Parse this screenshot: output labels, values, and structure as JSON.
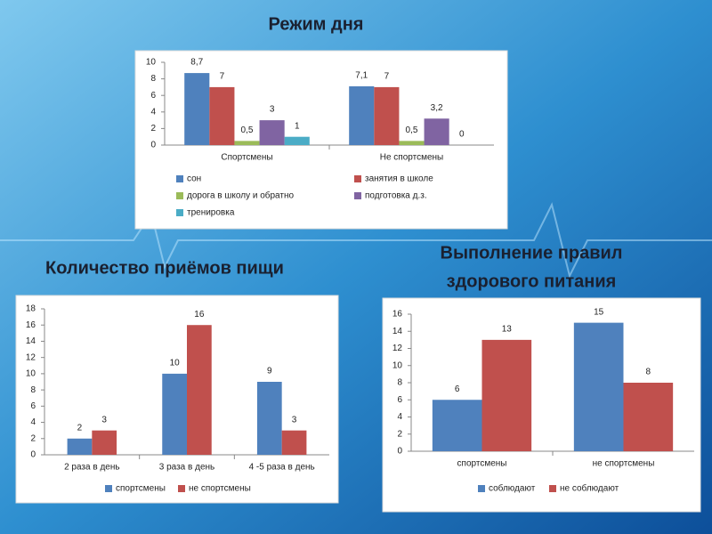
{
  "chart_data": [
    {
      "type": "bar",
      "title": [
        "Режим дня"
      ],
      "categories": [
        "Спортсмены",
        "Не спортсмены"
      ],
      "series": [
        {
          "name": "сон",
          "color": "#4f81bd",
          "values": [
            8.7,
            7.1
          ],
          "value_labels": [
            "8,7",
            "7,1"
          ]
        },
        {
          "name": "занятия в школе",
          "color": "#c0504d",
          "values": [
            7,
            7
          ],
          "value_labels": [
            "7",
            "7"
          ]
        },
        {
          "name": "дорога в школу и обратно",
          "color": "#9bbb59",
          "values": [
            0.5,
            0.5
          ],
          "value_labels": [
            "0,5",
            "0,5"
          ]
        },
        {
          "name": "подготовка д.з.",
          "color": "#8064a2",
          "values": [
            3,
            3.2
          ],
          "value_labels": [
            "3",
            "3,2"
          ]
        },
        {
          "name": "тренировка",
          "color": "#4bacc6",
          "values": [
            1,
            0
          ],
          "value_labels": [
            "1",
            "0"
          ]
        }
      ],
      "ylim": [
        0,
        10
      ],
      "yticks": [
        0,
        2,
        4,
        6,
        8,
        10
      ],
      "legend": "bottom"
    },
    {
      "type": "bar",
      "title": [
        "Количество приёмов пищи"
      ],
      "categories": [
        "2 раза в день",
        "3 раза в день",
        "4 -5 раза в день"
      ],
      "series": [
        {
          "name": "спортсмены",
          "color": "#4f81bd",
          "values": [
            2,
            10,
            9
          ]
        },
        {
          "name": "не спортсмены",
          "color": "#c0504d",
          "values": [
            3,
            16,
            3
          ]
        }
      ],
      "ylim": [
        0,
        18
      ],
      "yticks": [
        0,
        2,
        4,
        6,
        8,
        10,
        12,
        14,
        16,
        18
      ],
      "legend": "bottom"
    },
    {
      "type": "bar",
      "title": [
        "Выполнение правил",
        "здорового питания"
      ],
      "categories": [
        "спортсмены",
        "не спортсмены"
      ],
      "series": [
        {
          "name": "соблюдают",
          "color": "#4f81bd",
          "values": [
            6,
            15
          ]
        },
        {
          "name": "не соблюдают",
          "color": "#c0504d",
          "values": [
            13,
            8
          ]
        }
      ],
      "ylim": [
        0,
        16
      ],
      "yticks": [
        0,
        2,
        4,
        6,
        8,
        10,
        12,
        14,
        16
      ],
      "legend": "bottom"
    }
  ]
}
